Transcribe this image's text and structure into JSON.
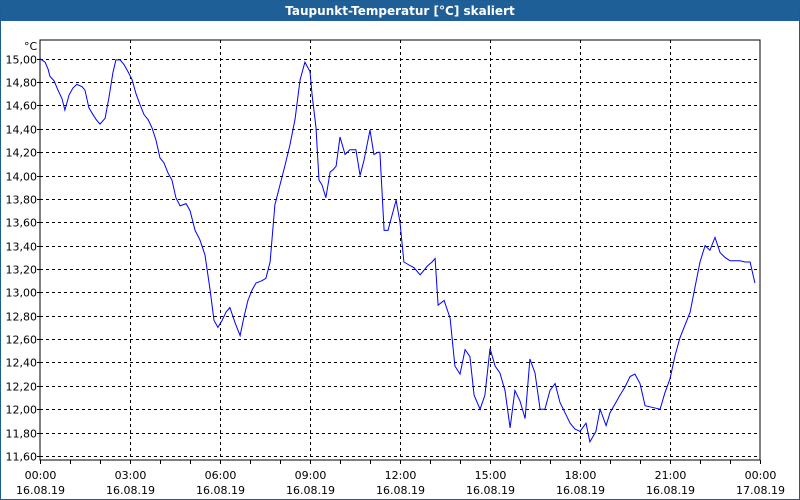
{
  "window": {
    "title": "Taupunkt-Temperatur [°C] skaliert"
  },
  "chart_data": {
    "type": "line",
    "title": "Taupunkt-Temperatur [°C] skaliert",
    "ylabel": "°C",
    "xlabel": "",
    "x_unit": "hours since 16.08.19 00:00",
    "xlim": [
      0,
      24
    ],
    "ylim": [
      11.565,
      15.16
    ],
    "grid": true,
    "line_color": "#0000ff",
    "yticks": [
      11.6,
      11.8,
      12.0,
      12.2,
      12.4,
      12.6,
      12.8,
      13.0,
      13.2,
      13.4,
      13.6,
      13.8,
      14.0,
      14.2,
      14.4,
      14.6,
      14.8,
      15.0
    ],
    "ytick_labels": [
      "11,60",
      "11,80",
      "12,00",
      "12,20",
      "12,40",
      "12,60",
      "12,80",
      "13,00",
      "13,20",
      "13,40",
      "13,60",
      "13,80",
      "14,00",
      "14,20",
      "14,40",
      "14,60",
      "14,80",
      "15,00"
    ],
    "xticks": [
      {
        "h": 0,
        "time": "00:00",
        "date": "16.08.19"
      },
      {
        "h": 3,
        "time": "03:00",
        "date": "16.08.19"
      },
      {
        "h": 6,
        "time": "06:00",
        "date": "16.08.19"
      },
      {
        "h": 9,
        "time": "09:00",
        "date": "16.08.19"
      },
      {
        "h": 12,
        "time": "12:00",
        "date": "16.08.19"
      },
      {
        "h": 15,
        "time": "15:00",
        "date": "16.08.19"
      },
      {
        "h": 18,
        "time": "18:00",
        "date": "16.08.19"
      },
      {
        "h": 21,
        "time": "21:00",
        "date": "16.08.19"
      },
      {
        "h": 24,
        "time": "00:00",
        "date": "17.08.19"
      }
    ],
    "series": [
      {
        "name": "Taupunkt-Temperatur",
        "x": [
          0,
          0.17,
          0.27,
          0.33,
          0.47,
          0.6,
          0.73,
          0.83,
          0.97,
          1.1,
          1.23,
          1.4,
          1.5,
          1.63,
          1.77,
          1.87,
          2.0,
          2.17,
          2.3,
          2.43,
          2.53,
          2.67,
          2.8,
          2.93,
          3.07,
          3.2,
          3.33,
          3.47,
          3.6,
          3.73,
          3.87,
          4.0,
          4.13,
          4.27,
          4.4,
          4.53,
          4.67,
          4.87,
          5.0,
          5.17,
          5.33,
          5.5,
          5.67,
          5.8,
          5.93,
          6.07,
          6.2,
          6.33,
          6.5,
          6.67,
          6.8,
          6.93,
          7.07,
          7.2,
          7.4,
          7.53,
          7.67,
          7.83,
          8.0,
          8.17,
          8.33,
          8.5,
          8.67,
          8.83,
          9.0,
          9.07,
          9.2,
          9.3,
          9.4,
          9.53,
          9.67,
          9.77,
          9.87,
          10.0,
          10.17,
          10.33,
          10.53,
          10.67,
          10.8,
          11.0,
          11.13,
          11.27,
          11.33,
          11.47,
          11.6,
          11.87,
          12.0,
          12.13,
          12.33,
          12.47,
          12.67,
          12.93,
          13.07,
          13.17,
          13.27,
          13.47,
          13.67,
          13.83,
          14.0,
          14.17,
          14.33,
          14.47,
          14.67,
          14.83,
          15.0,
          15.17,
          15.33,
          15.5,
          15.67,
          15.83,
          16.0,
          16.17,
          16.33,
          16.5,
          16.67,
          16.83,
          17.0,
          17.17,
          17.33,
          17.5,
          17.67,
          17.83,
          18.0,
          18.2,
          18.33,
          18.53,
          18.67,
          18.87,
          19.0,
          19.2,
          19.33,
          19.5,
          19.67,
          19.83,
          20.0,
          20.17,
          20.33,
          20.67,
          20.83,
          21.0,
          21.17,
          21.33,
          21.5,
          21.67,
          21.83,
          22.0,
          22.17,
          22.33,
          22.5,
          22.67,
          22.83,
          23.0,
          23.33,
          23.5,
          23.67,
          23.83
        ],
        "y": [
          15.0,
          14.97,
          14.91,
          14.85,
          14.81,
          14.73,
          14.66,
          14.56,
          14.69,
          14.75,
          14.78,
          14.76,
          14.73,
          14.58,
          14.52,
          14.48,
          14.44,
          14.49,
          14.67,
          14.88,
          14.99,
          14.99,
          14.95,
          14.89,
          14.82,
          14.7,
          14.61,
          14.52,
          14.48,
          14.41,
          14.3,
          14.15,
          14.11,
          14.02,
          13.96,
          13.81,
          13.74,
          13.76,
          13.7,
          13.53,
          13.45,
          13.32,
          13.02,
          12.76,
          12.7,
          12.76,
          12.83,
          12.87,
          12.74,
          12.63,
          12.79,
          12.93,
          13.02,
          13.08,
          13.1,
          13.12,
          13.26,
          13.75,
          13.92,
          14.09,
          14.26,
          14.48,
          14.82,
          14.97,
          14.89,
          14.69,
          14.41,
          13.96,
          13.92,
          13.81,
          14.03,
          14.05,
          14.08,
          14.33,
          14.18,
          14.22,
          14.22,
          14.0,
          14.13,
          14.39,
          14.18,
          14.2,
          14.2,
          13.53,
          13.53,
          13.79,
          13.6,
          13.26,
          13.23,
          13.21,
          13.15,
          13.23,
          13.26,
          13.29,
          12.89,
          12.93,
          12.78,
          12.37,
          12.3,
          12.51,
          12.45,
          12.12,
          12.0,
          12.12,
          12.52,
          12.37,
          12.31,
          12.16,
          11.84,
          12.16,
          12.07,
          11.92,
          12.43,
          12.31,
          12.0,
          12.0,
          12.16,
          12.22,
          12.06,
          11.97,
          11.88,
          11.83,
          11.81,
          11.88,
          11.72,
          11.81,
          12.0,
          11.86,
          11.97,
          12.06,
          12.12,
          12.19,
          12.28,
          12.3,
          12.22,
          12.03,
          12.02,
          12.0,
          12.14,
          12.26,
          12.46,
          12.61,
          12.72,
          12.83,
          13.04,
          13.26,
          13.4,
          13.36,
          13.47,
          13.34,
          13.3,
          13.27,
          13.27,
          13.26,
          13.26,
          13.08
        ]
      }
    ]
  }
}
